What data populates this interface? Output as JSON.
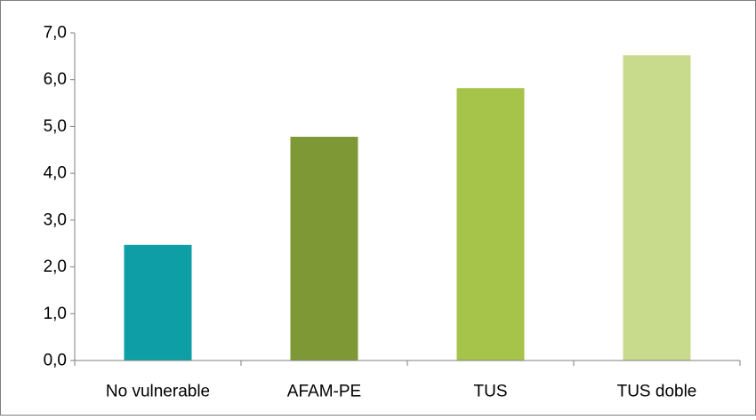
{
  "chart_data": {
    "type": "bar",
    "title": "",
    "categories": [
      "No vulnerable",
      "AFAM-PE",
      "TUS",
      "TUS doble"
    ],
    "values": [
      2.47,
      4.78,
      5.82,
      6.52
    ],
    "colors": [
      "#0e9fa6",
      "#7e9836",
      "#a6c44a",
      "#c8da8c"
    ],
    "ylim": [
      0,
      7
    ],
    "yticks": [
      "0,0",
      "1,0",
      "2,0",
      "3,0",
      "4,0",
      "5,0",
      "6,0",
      "7,0"
    ],
    "xlabel": "",
    "ylabel": "",
    "grid": false,
    "legend": "none"
  }
}
